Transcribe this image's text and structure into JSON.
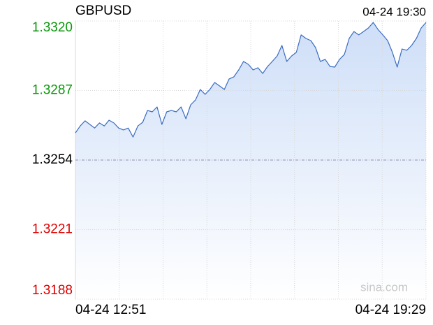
{
  "chart_data": {
    "type": "line",
    "title": "GBPUSD",
    "timestamp": "04-24 19:30",
    "watermark": "sina.com",
    "categories": [
      "04-24 12:51",
      null,
      null,
      null,
      null,
      null,
      null,
      null,
      null,
      null,
      null,
      null,
      null,
      null,
      null,
      null,
      null,
      null,
      null,
      null,
      null,
      null,
      null,
      null,
      null,
      null,
      null,
      null,
      null,
      null,
      null,
      null,
      null,
      null,
      null,
      null,
      null,
      null,
      null,
      null,
      null,
      null,
      null,
      null,
      null,
      null,
      null,
      null,
      null,
      null,
      null,
      null,
      null,
      null,
      null,
      null,
      null,
      null,
      null,
      null,
      null,
      null,
      null,
      null,
      null,
      null,
      null,
      null,
      null,
      null,
      null,
      null,
      null,
      "04-24 19:29"
    ],
    "values": [
      1.32669,
      1.32702,
      1.32726,
      1.32709,
      1.32692,
      1.32716,
      1.32702,
      1.32729,
      1.32716,
      1.32692,
      1.32683,
      1.32692,
      1.32649,
      1.32702,
      1.32719,
      1.32775,
      1.32769,
      1.32792,
      1.32709,
      1.32769,
      1.32775,
      1.32769,
      1.32792,
      1.32736,
      1.32802,
      1.32825,
      1.32875,
      1.32852,
      1.32875,
      1.32908,
      1.32892,
      1.32875,
      1.32925,
      1.32935,
      1.32968,
      1.33008,
      1.32994,
      1.32968,
      1.32978,
      1.32951,
      1.32984,
      1.33008,
      1.33034,
      1.33084,
      1.33008,
      1.33034,
      1.33051,
      1.33134,
      1.33117,
      1.33107,
      1.33074,
      1.33008,
      1.33018,
      1.32984,
      1.32981,
      1.33018,
      1.33041,
      1.33117,
      1.3315,
      1.33134,
      1.3315,
      1.33167,
      1.33193,
      1.3316,
      1.33134,
      1.33107,
      1.33051,
      1.32981,
      1.33067,
      1.33061,
      1.33084,
      1.33117,
      1.33167,
      1.33193
    ],
    "color": "#3a6cc0",
    "area_color": "#c9dbf7",
    "ylim": [
      1.3188,
      1.332
    ],
    "yticks": [
      {
        "value": 1.332,
        "label": "1.3320"
      },
      1.3287,
      1.3254,
      1.3221,
      1.3188
    ],
    "reference_tick": 2,
    "up_color": "#0a9a0a",
    "down_color": "#e00000",
    "grid": true
  }
}
